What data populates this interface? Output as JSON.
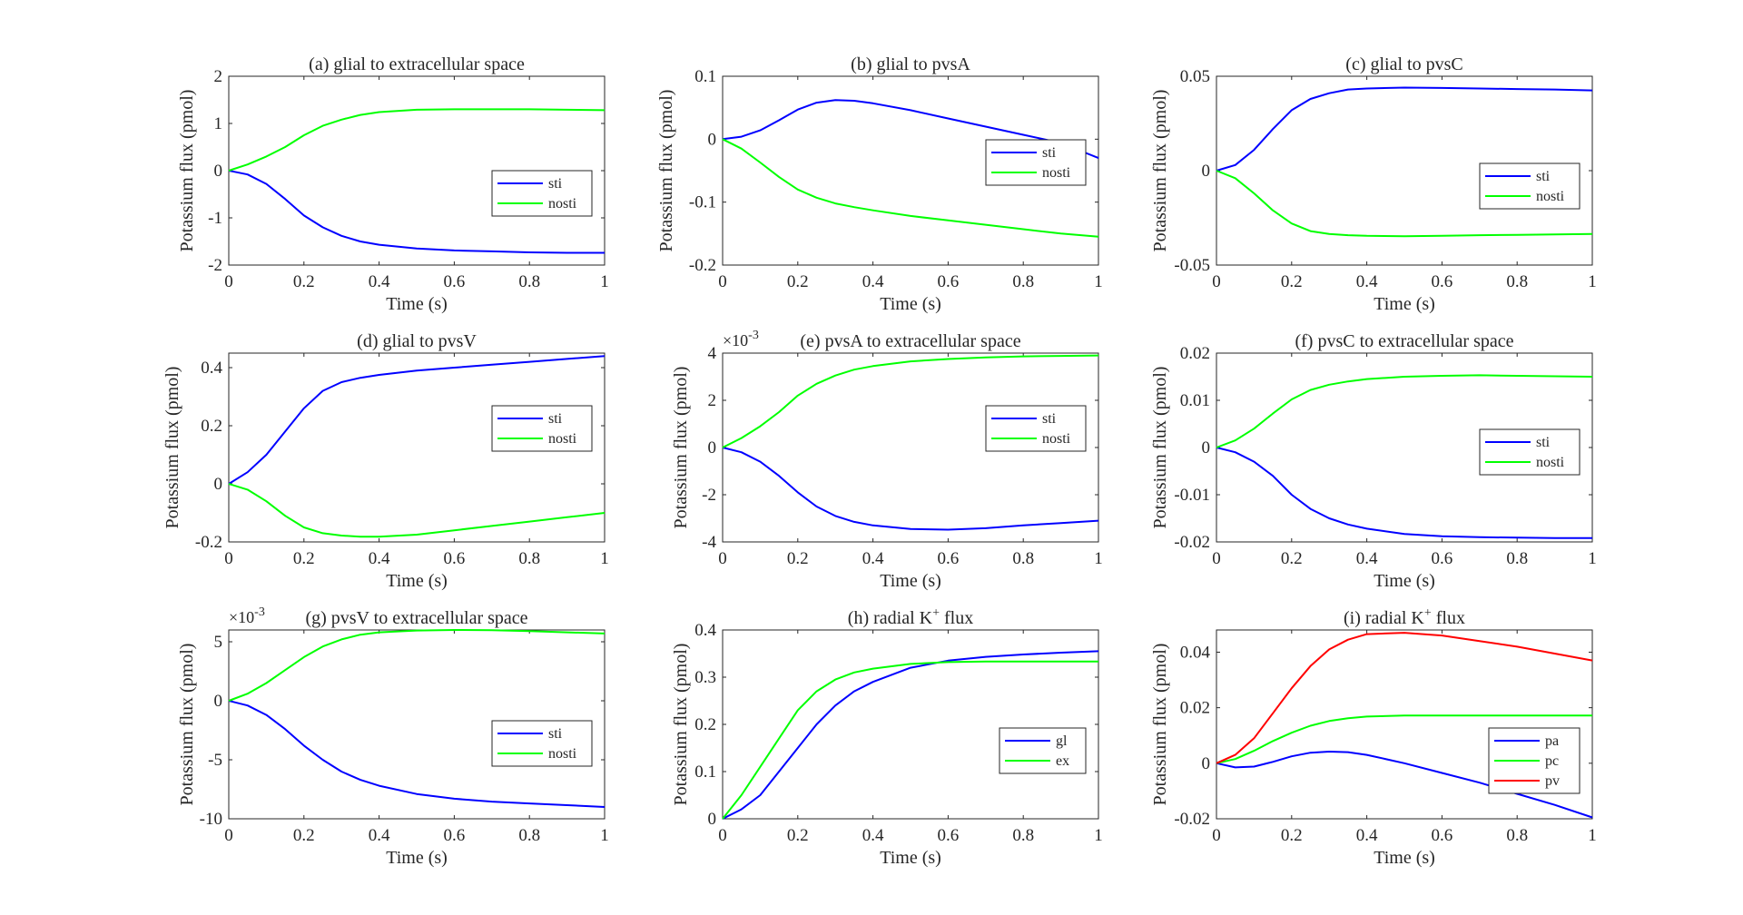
{
  "chart_data": [
    {
      "type": "line",
      "panel": "a",
      "title": "(a) glial to extracellular space",
      "xlabel": "Time (s)",
      "ylabel": "Potassium flux (pmol)",
      "xlim": [
        0,
        1
      ],
      "ylim": [
        -2,
        2
      ],
      "xticks": [
        0,
        0.2,
        0.4,
        0.6,
        0.8,
        1
      ],
      "xtick_labels": [
        "0",
        "0.2",
        "0.4",
        "0.6",
        "0.8",
        "1"
      ],
      "yticks": [
        -2,
        -1,
        0,
        1,
        2
      ],
      "ytick_labels": [
        "-2",
        "-1",
        "0",
        "1",
        "2"
      ],
      "exponent_label": "",
      "legend_location": "right",
      "x": [
        0,
        0.05,
        0.1,
        0.15,
        0.2,
        0.25,
        0.3,
        0.35,
        0.4,
        0.5,
        0.6,
        0.7,
        0.8,
        0.9,
        1.0
      ],
      "series": [
        {
          "name": "sti",
          "color": "#0000ff",
          "values": [
            0,
            -0.08,
            -0.28,
            -0.6,
            -0.95,
            -1.2,
            -1.38,
            -1.5,
            -1.57,
            -1.65,
            -1.69,
            -1.71,
            -1.73,
            -1.74,
            -1.74
          ]
        },
        {
          "name": "nosti",
          "color": "#00ff00",
          "values": [
            0,
            0.13,
            0.3,
            0.5,
            0.75,
            0.95,
            1.08,
            1.18,
            1.24,
            1.29,
            1.3,
            1.3,
            1.3,
            1.29,
            1.28
          ]
        }
      ]
    },
    {
      "type": "line",
      "panel": "b",
      "title": "(b) glial to pvsA",
      "xlabel": "Time (s)",
      "ylabel": "Potassium flux (pmol)",
      "xlim": [
        0,
        1
      ],
      "ylim": [
        -0.2,
        0.1
      ],
      "xticks": [
        0,
        0.2,
        0.4,
        0.6,
        0.8,
        1
      ],
      "xtick_labels": [
        "0",
        "0.2",
        "0.4",
        "0.6",
        "0.8",
        "1"
      ],
      "yticks": [
        -0.2,
        -0.1,
        0,
        0.1
      ],
      "ytick_labels": [
        "-0.2",
        "-0.1",
        "0",
        "0.1"
      ],
      "exponent_label": "",
      "legend_location": "right",
      "x": [
        0,
        0.05,
        0.1,
        0.15,
        0.2,
        0.25,
        0.3,
        0.35,
        0.4,
        0.5,
        0.6,
        0.7,
        0.8,
        0.9,
        1.0
      ],
      "series": [
        {
          "name": "sti",
          "color": "#0000ff",
          "values": [
            0,
            0.004,
            0.014,
            0.03,
            0.047,
            0.058,
            0.062,
            0.061,
            0.057,
            0.046,
            0.033,
            0.02,
            0.007,
            -0.006,
            -0.03
          ]
        },
        {
          "name": "nosti",
          "color": "#00ff00",
          "values": [
            0,
            -0.015,
            -0.037,
            -0.06,
            -0.08,
            -0.093,
            -0.102,
            -0.108,
            -0.113,
            -0.122,
            -0.129,
            -0.136,
            -0.143,
            -0.15,
            -0.155
          ]
        }
      ]
    },
    {
      "type": "line",
      "panel": "c",
      "title": "(c) glial to pvsC",
      "xlabel": "Time (s)",
      "ylabel": "Potassium flux (pmol)",
      "xlim": [
        0,
        1
      ],
      "ylim": [
        -0.05,
        0.05
      ],
      "xticks": [
        0,
        0.2,
        0.4,
        0.6,
        0.8,
        1
      ],
      "xtick_labels": [
        "0",
        "0.2",
        "0.4",
        "0.6",
        "0.8",
        "1"
      ],
      "yticks": [
        -0.05,
        0,
        0.05
      ],
      "ytick_labels": [
        "-0.05",
        "0",
        "0.05"
      ],
      "exponent_label": "",
      "legend_location": "right",
      "x": [
        0,
        0.05,
        0.1,
        0.15,
        0.2,
        0.25,
        0.3,
        0.35,
        0.4,
        0.5,
        0.6,
        0.7,
        0.8,
        0.9,
        1.0
      ],
      "series": [
        {
          "name": "sti",
          "color": "#0000ff",
          "values": [
            0,
            0.003,
            0.011,
            0.022,
            0.032,
            0.038,
            0.041,
            0.043,
            0.0435,
            0.044,
            0.0438,
            0.0435,
            0.0432,
            0.043,
            0.0425
          ]
        },
        {
          "name": "nosti",
          "color": "#00ff00",
          "values": [
            0,
            -0.004,
            -0.012,
            -0.021,
            -0.028,
            -0.032,
            -0.0335,
            -0.0342,
            -0.0345,
            -0.0347,
            -0.0345,
            -0.0342,
            -0.034,
            -0.0338,
            -0.0335
          ]
        }
      ]
    },
    {
      "type": "line",
      "panel": "d",
      "title": "(d) glial to pvsV",
      "xlabel": "Time (s)",
      "ylabel": "Potassium flux (pmol)",
      "xlim": [
        0,
        1
      ],
      "ylim": [
        -0.2,
        0.45
      ],
      "xticks": [
        0,
        0.2,
        0.4,
        0.6,
        0.8,
        1
      ],
      "xtick_labels": [
        "0",
        "0.2",
        "0.4",
        "0.6",
        "0.8",
        "1"
      ],
      "yticks": [
        -0.2,
        0,
        0.2,
        0.4
      ],
      "ytick_labels": [
        "-0.2",
        "0",
        "0.2",
        "0.4"
      ],
      "exponent_label": "",
      "legend_location": "right",
      "x": [
        0,
        0.05,
        0.1,
        0.15,
        0.2,
        0.25,
        0.3,
        0.35,
        0.4,
        0.5,
        0.6,
        0.7,
        0.8,
        0.9,
        1.0
      ],
      "series": [
        {
          "name": "sti",
          "color": "#0000ff",
          "values": [
            0,
            0.04,
            0.1,
            0.18,
            0.26,
            0.32,
            0.35,
            0.365,
            0.375,
            0.39,
            0.4,
            0.41,
            0.42,
            0.43,
            0.44
          ]
        },
        {
          "name": "nosti",
          "color": "#00ff00",
          "values": [
            0,
            -0.02,
            -0.06,
            -0.11,
            -0.15,
            -0.17,
            -0.178,
            -0.182,
            -0.182,
            -0.175,
            -0.16,
            -0.145,
            -0.13,
            -0.115,
            -0.1
          ]
        }
      ]
    },
    {
      "type": "line",
      "panel": "e",
      "title": "(e) pvsA to extracellular space",
      "xlabel": "Time (s)",
      "ylabel": "Potassium flux (pmol)",
      "xlim": [
        0,
        1
      ],
      "ylim": [
        -4,
        4
      ],
      "xticks": [
        0,
        0.2,
        0.4,
        0.6,
        0.8,
        1
      ],
      "xtick_labels": [
        "0",
        "0.2",
        "0.4",
        "0.6",
        "0.8",
        "1"
      ],
      "yticks": [
        -4,
        -2,
        0,
        2,
        4
      ],
      "ytick_labels": [
        "-4",
        "-2",
        "0",
        "2",
        "4"
      ],
      "exponent_label": "×10",
      "exponent_power": "-3",
      "legend_location": "right",
      "x": [
        0,
        0.05,
        0.1,
        0.15,
        0.2,
        0.25,
        0.3,
        0.35,
        0.4,
        0.5,
        0.6,
        0.7,
        0.8,
        0.9,
        1.0
      ],
      "series": [
        {
          "name": "sti",
          "color": "#0000ff",
          "values": [
            0,
            -0.2,
            -0.6,
            -1.2,
            -1.9,
            -2.5,
            -2.9,
            -3.15,
            -3.3,
            -3.45,
            -3.48,
            -3.42,
            -3.3,
            -3.2,
            -3.1
          ]
        },
        {
          "name": "nosti",
          "color": "#00ff00",
          "values": [
            0,
            0.4,
            0.9,
            1.5,
            2.2,
            2.7,
            3.05,
            3.3,
            3.45,
            3.65,
            3.75,
            3.82,
            3.86,
            3.88,
            3.9
          ]
        }
      ]
    },
    {
      "type": "line",
      "panel": "f",
      "title": "(f) pvsC to extracellular space",
      "xlabel": "Time (s)",
      "ylabel": "Potassium flux (pmol)",
      "xlim": [
        0,
        1
      ],
      "ylim": [
        -0.02,
        0.02
      ],
      "xticks": [
        0,
        0.2,
        0.4,
        0.6,
        0.8,
        1
      ],
      "xtick_labels": [
        "0",
        "0.2",
        "0.4",
        "0.6",
        "0.8",
        "1"
      ],
      "yticks": [
        -0.02,
        -0.01,
        0,
        0.01,
        0.02
      ],
      "ytick_labels": [
        "-0.02",
        "-0.01",
        "0",
        "0.01",
        "0.02"
      ],
      "exponent_label": "",
      "legend_location": "right",
      "x": [
        0,
        0.05,
        0.1,
        0.15,
        0.2,
        0.25,
        0.3,
        0.35,
        0.4,
        0.5,
        0.6,
        0.7,
        0.8,
        0.9,
        1.0
      ],
      "series": [
        {
          "name": "sti",
          "color": "#0000ff",
          "values": [
            0,
            -0.001,
            -0.003,
            -0.006,
            -0.01,
            -0.013,
            -0.015,
            -0.0163,
            -0.0172,
            -0.0183,
            -0.0188,
            -0.019,
            -0.0191,
            -0.0192,
            -0.0192
          ]
        },
        {
          "name": "nosti",
          "color": "#00ff00",
          "values": [
            0,
            0.0015,
            0.004,
            0.0072,
            0.0102,
            0.0122,
            0.0133,
            0.014,
            0.0145,
            0.015,
            0.0152,
            0.0153,
            0.0152,
            0.0151,
            0.015
          ]
        }
      ]
    },
    {
      "type": "line",
      "panel": "g",
      "title": "(g) pvsV to extracellular space",
      "xlabel": "Time (s)",
      "ylabel": "Potassium flux (pmol)",
      "xlim": [
        0,
        1
      ],
      "ylim": [
        -10,
        6
      ],
      "xticks": [
        0,
        0.2,
        0.4,
        0.6,
        0.8,
        1
      ],
      "xtick_labels": [
        "0",
        "0.2",
        "0.4",
        "0.6",
        "0.8",
        "1"
      ],
      "yticks": [
        -10,
        -5,
        0,
        5
      ],
      "ytick_labels": [
        "-10",
        "-5",
        "0",
        "5"
      ],
      "exponent_label": "×10",
      "exponent_power": "-3",
      "legend_location": "right",
      "x": [
        0,
        0.05,
        0.1,
        0.15,
        0.2,
        0.25,
        0.3,
        0.35,
        0.4,
        0.5,
        0.6,
        0.7,
        0.8,
        0.9,
        1.0
      ],
      "series": [
        {
          "name": "sti",
          "color": "#0000ff",
          "values": [
            0,
            -0.4,
            -1.2,
            -2.4,
            -3.8,
            -5.0,
            -6.0,
            -6.7,
            -7.2,
            -7.9,
            -8.3,
            -8.55,
            -8.7,
            -8.85,
            -9.0
          ]
        },
        {
          "name": "nosti",
          "color": "#00ff00",
          "values": [
            0,
            0.6,
            1.5,
            2.6,
            3.7,
            4.6,
            5.2,
            5.6,
            5.8,
            5.95,
            6.0,
            5.98,
            5.9,
            5.8,
            5.7
          ]
        }
      ]
    },
    {
      "type": "line",
      "panel": "h",
      "title": "(h) radial K",
      "title_sup": "+",
      "title_suffix": " flux",
      "xlabel": "Time (s)",
      "ylabel": "Potassium flux (pmol)",
      "xlim": [
        0,
        1
      ],
      "ylim": [
        0,
        0.4
      ],
      "xticks": [
        0,
        0.2,
        0.4,
        0.6,
        0.8,
        1
      ],
      "xtick_labels": [
        "0",
        "0.2",
        "0.4",
        "0.6",
        "0.8",
        "1"
      ],
      "yticks": [
        0,
        0.1,
        0.2,
        0.3,
        0.4
      ],
      "ytick_labels": [
        "0",
        "0.1",
        "0.2",
        "0.3",
        "0.4"
      ],
      "exponent_label": "",
      "legend_location": "right",
      "x": [
        0,
        0.05,
        0.1,
        0.15,
        0.2,
        0.25,
        0.3,
        0.35,
        0.4,
        0.5,
        0.6,
        0.7,
        0.8,
        0.9,
        1.0
      ],
      "series": [
        {
          "name": "gl",
          "color": "#0000ff",
          "values": [
            0,
            0.02,
            0.05,
            0.1,
            0.15,
            0.2,
            0.24,
            0.27,
            0.29,
            0.32,
            0.335,
            0.343,
            0.348,
            0.352,
            0.355
          ]
        },
        {
          "name": "ex",
          "color": "#00ff00",
          "values": [
            0,
            0.05,
            0.11,
            0.17,
            0.23,
            0.27,
            0.295,
            0.31,
            0.318,
            0.328,
            0.332,
            0.333,
            0.333,
            0.333,
            0.333
          ]
        }
      ]
    },
    {
      "type": "line",
      "panel": "i",
      "title": "(i) radial K",
      "title_sup": "+",
      "title_suffix": " flux",
      "xlabel": "Time (s)",
      "ylabel": "Potassium flux (pmol)",
      "xlim": [
        0,
        1
      ],
      "ylim": [
        -0.02,
        0.048
      ],
      "xticks": [
        0,
        0.2,
        0.4,
        0.6,
        0.8,
        1
      ],
      "xtick_labels": [
        "0",
        "0.2",
        "0.4",
        "0.6",
        "0.8",
        "1"
      ],
      "yticks": [
        -0.02,
        0,
        0.02,
        0.04
      ],
      "ytick_labels": [
        "-0.02",
        "0",
        "0.02",
        "0.04"
      ],
      "exponent_label": "",
      "legend_location": "bottom-right",
      "x": [
        0,
        0.05,
        0.1,
        0.15,
        0.2,
        0.25,
        0.3,
        0.35,
        0.4,
        0.5,
        0.6,
        0.7,
        0.8,
        0.9,
        1.0
      ],
      "series": [
        {
          "name": "pa",
          "color": "#0000ff",
          "values": [
            0,
            -0.0015,
            -0.0012,
            0.0005,
            0.0025,
            0.0038,
            0.0042,
            0.004,
            0.003,
            0,
            -0.0035,
            -0.007,
            -0.011,
            -0.015,
            -0.0195
          ]
        },
        {
          "name": "pc",
          "color": "#00ff00",
          "values": [
            0,
            0.0015,
            0.0045,
            0.008,
            0.011,
            0.0135,
            0.0152,
            0.0162,
            0.0168,
            0.0172,
            0.0172,
            0.0172,
            0.0172,
            0.0172,
            0.0172
          ]
        },
        {
          "name": "pv",
          "color": "#ff0000",
          "values": [
            0,
            0.003,
            0.009,
            0.018,
            0.027,
            0.035,
            0.041,
            0.0445,
            0.0465,
            0.047,
            0.046,
            0.044,
            0.042,
            0.0395,
            0.037
          ]
        }
      ]
    }
  ]
}
